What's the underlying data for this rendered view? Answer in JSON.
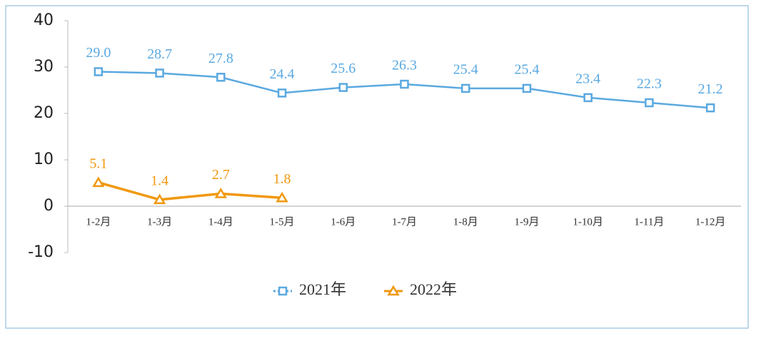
{
  "chart_data": {
    "type": "line",
    "categories": [
      "1-2月",
      "1-3月",
      "1-4月",
      "1-5月",
      "1-6月",
      "1-7月",
      "1-8月",
      "1-9月",
      "1-10月",
      "1-11月",
      "1-12月"
    ],
    "series": [
      {
        "name": "2021年",
        "color": "#5aa9e0",
        "marker": "square",
        "values": [
          29.0,
          28.7,
          27.8,
          24.4,
          25.6,
          26.3,
          25.4,
          25.4,
          23.4,
          22.3,
          21.2
        ],
        "value_labels": [
          "29.0",
          "28.7",
          "27.8",
          "24.4",
          "25.6",
          "26.3",
          "25.4",
          "25.4",
          "23.4",
          "22.3",
          "21.2"
        ]
      },
      {
        "name": "2022年",
        "color": "#f0980f",
        "marker": "triangle",
        "values": [
          5.1,
          1.4,
          2.7,
          1.8,
          null,
          null,
          null,
          null,
          null,
          null,
          null
        ],
        "value_labels": [
          "5.1",
          "1.4",
          "2.7",
          "1.8",
          null,
          null,
          null,
          null,
          null,
          null,
          null
        ]
      }
    ],
    "ylim": [
      -10,
      40
    ],
    "yticks": [
      -10,
      0,
      10,
      20,
      30,
      40
    ],
    "grid": false,
    "legend": "bottom"
  }
}
